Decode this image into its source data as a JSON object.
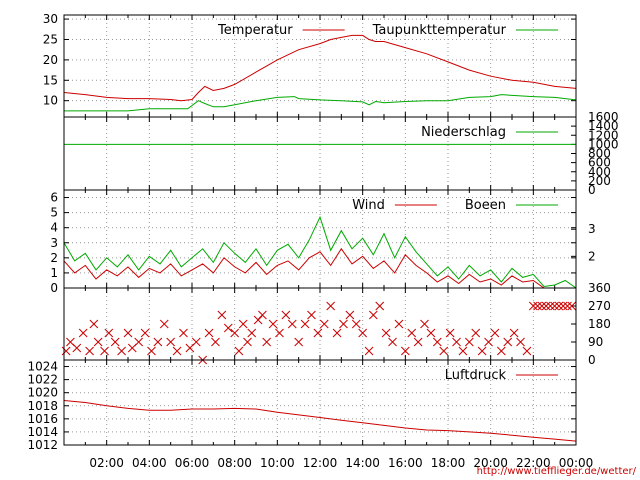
{
  "credit": "http://www.tiefflieger.de/wetter/",
  "colors": {
    "red": "#cc0000",
    "green": "#00aa00",
    "grid": "#999999",
    "frame": "#000000"
  },
  "x_tick_labels": [
    "02:00",
    "04:00",
    "06:00",
    "08:00",
    "10:00",
    "12:00",
    "14:00",
    "16:00",
    "18:00",
    "20:00",
    "22:00",
    "00:00"
  ],
  "chart_data": [
    {
      "type": "line",
      "x_unit": "hour",
      "xlim": [
        0,
        24
      ],
      "ylim": [
        6,
        31
      ],
      "y_ticks": [
        10,
        15,
        20,
        25,
        30
      ],
      "grid": true,
      "legend_position": "top-right",
      "series": [
        {
          "name": "Temperatur",
          "color": "#cc0000",
          "x": [
            0,
            1,
            2,
            3,
            4,
            5,
            5.5,
            6,
            6.3,
            6.6,
            7,
            7.5,
            8,
            9,
            10,
            11,
            12,
            12.5,
            13,
            13.5,
            14,
            14.3,
            14.6,
            15,
            16,
            17,
            18,
            19,
            20,
            21,
            22,
            23,
            24
          ],
          "y": [
            12,
            11.5,
            10.8,
            10.5,
            10.5,
            10.3,
            10,
            10.3,
            12,
            13.5,
            12.5,
            13,
            14,
            17,
            20,
            22.5,
            24,
            25,
            25.5,
            26,
            26,
            25,
            24.5,
            24.5,
            23,
            21.5,
            19.5,
            17.5,
            16,
            15,
            14.5,
            13.5,
            13
          ]
        },
        {
          "name": "Taupunkttemperatur",
          "color": "#00aa00",
          "x": [
            0,
            1,
            2,
            3,
            4,
            5,
            5.8,
            6.3,
            6.6,
            7,
            7.5,
            8,
            9,
            10,
            10.8,
            11,
            12,
            13,
            14,
            14.3,
            14.6,
            15,
            16,
            17,
            18,
            19,
            20,
            20.5,
            21,
            22,
            23,
            24
          ],
          "y": [
            7.5,
            7.5,
            7.5,
            7.5,
            8,
            8,
            8,
            10,
            9.3,
            8.5,
            8.5,
            9,
            10,
            10.8,
            11,
            10.5,
            10.2,
            10,
            9.7,
            9,
            9.8,
            9.5,
            9.8,
            10,
            10,
            10.8,
            11,
            11.5,
            11.3,
            11,
            10.8,
            10.2
          ]
        }
      ]
    },
    {
      "type": "line",
      "x_unit": "hour",
      "xlim": [
        0,
        24
      ],
      "ylim": [
        0,
        1600
      ],
      "right_y_ticks": [
        0,
        200,
        400,
        600,
        800,
        1000,
        1200,
        1400,
        1600
      ],
      "grid": false,
      "legend_position": "top-right",
      "series": [
        {
          "name": "Niederschlag",
          "color": "#00aa00",
          "x": [
            0,
            24
          ],
          "y": [
            1000,
            1000
          ]
        }
      ]
    },
    {
      "type": "line",
      "x_unit": "hour",
      "xlim": [
        0,
        24
      ],
      "ylim": [
        0,
        6.5
      ],
      "y_ticks": [
        0,
        1,
        2,
        3,
        4,
        5,
        6
      ],
      "right_ticks": [
        {
          "label": "2",
          "value": 2.1
        },
        {
          "label": "3",
          "value": 3.9
        }
      ],
      "grid": true,
      "legend_position": "top-right",
      "series": [
        {
          "name": "Wind",
          "color": "#cc0000",
          "x": [
            0,
            0.5,
            1,
            1.5,
            2,
            2.5,
            3,
            3.5,
            4,
            4.5,
            5,
            5.5,
            6,
            6.5,
            7,
            7.5,
            8,
            8.5,
            9,
            9.5,
            10,
            10.5,
            11,
            11.5,
            12,
            12.5,
            13,
            13.5,
            14,
            14.5,
            15,
            15.5,
            16,
            16.5,
            17,
            17.5,
            18,
            18.5,
            19,
            19.5,
            20,
            20.5,
            21,
            21.5,
            22,
            22.5,
            23,
            23.5,
            24
          ],
          "y": [
            1.8,
            1,
            1.5,
            0.6,
            1.2,
            0.8,
            1.4,
            0.7,
            1.3,
            1,
            1.6,
            0.8,
            1.2,
            1.6,
            1,
            2,
            1.4,
            1,
            1.7,
            0.9,
            1.5,
            1.8,
            1.2,
            2,
            2.4,
            1.5,
            2.6,
            1.6,
            2.1,
            1.3,
            1.8,
            1,
            2.2,
            1.5,
            1,
            0.4,
            0.8,
            0.3,
            0.9,
            0.4,
            0.6,
            0.2,
            0.8,
            0.4,
            0.5,
            0,
            0,
            0,
            0
          ]
        },
        {
          "name": "Boeen",
          "color": "#00aa00",
          "x": [
            0,
            0.5,
            1,
            1.5,
            2,
            2.5,
            3,
            3.5,
            4,
            4.5,
            5,
            5.5,
            6,
            6.5,
            7,
            7.5,
            8,
            8.5,
            9,
            9.5,
            10,
            10.5,
            11,
            11.5,
            12,
            12.5,
            13,
            13.5,
            14,
            14.5,
            15,
            15.5,
            16,
            16.5,
            17,
            17.5,
            18,
            18.5,
            19,
            19.5,
            20,
            20.5,
            21,
            21.5,
            22,
            22.5,
            23,
            23.5,
            24
          ],
          "y": [
            3,
            1.8,
            2.3,
            1.2,
            2,
            1.4,
            2.2,
            1.2,
            2.1,
            1.6,
            2.5,
            1.4,
            2,
            2.6,
            1.7,
            3,
            2.3,
            1.7,
            2.6,
            1.5,
            2.5,
            2.9,
            2,
            3.2,
            4.7,
            2.5,
            3.8,
            2.6,
            3.3,
            2.2,
            3.6,
            2,
            3.4,
            2.4,
            1.6,
            0.8,
            1.4,
            0.6,
            1.5,
            0.8,
            1.2,
            0.4,
            1.3,
            0.7,
            0.9,
            0.1,
            0.2,
            0.5,
            0
          ]
        }
      ]
    },
    {
      "type": "scatter",
      "x_unit": "hour",
      "xlim": [
        0,
        24
      ],
      "ylim": [
        0,
        360
      ],
      "right_y_ticks": [
        0,
        90,
        180,
        270,
        360
      ],
      "marker": "x",
      "color": "#cc0000",
      "series": [
        {
          "x": [
            0.1,
            0.3,
            0.6,
            0.9,
            1.2,
            1.4,
            1.6,
            1.9,
            2.1,
            2.4,
            2.7,
            3,
            3.2,
            3.5,
            3.8,
            4.1,
            4.4,
            4.7,
            5,
            5.3,
            5.6,
            5.9,
            6.2,
            6.5,
            6.8,
            7.1,
            7.4,
            7.7,
            8,
            8.2,
            8.4,
            8.6,
            8.8,
            9.1,
            9.3,
            9.5,
            9.8,
            10.1,
            10.4,
            10.7,
            11,
            11.3,
            11.6,
            11.9,
            12.2,
            12.5,
            12.8,
            13.1,
            13.4,
            13.7,
            14,
            14.3,
            14.5,
            14.8,
            15.1,
            15.4,
            15.7,
            16,
            16.3,
            16.6,
            16.9,
            17.2,
            17.5,
            17.8,
            18.1,
            18.4,
            18.7,
            19,
            19.3,
            19.6,
            19.9,
            20.2,
            20.5,
            20.8,
            21.1,
            21.4,
            21.7,
            22,
            22.2,
            22.4,
            22.6,
            22.8,
            23,
            23.2,
            23.4,
            23.6,
            23.8
          ],
          "y": [
            45,
            90,
            60,
            135,
            45,
            180,
            90,
            45,
            135,
            90,
            45,
            135,
            60,
            90,
            135,
            45,
            90,
            180,
            90,
            45,
            135,
            60,
            90,
            0,
            135,
            90,
            225,
            160,
            135,
            45,
            180,
            90,
            135,
            200,
            225,
            90,
            180,
            135,
            225,
            180,
            90,
            180,
            225,
            135,
            180,
            270,
            135,
            180,
            225,
            180,
            135,
            45,
            225,
            270,
            135,
            90,
            180,
            45,
            135,
            90,
            180,
            135,
            90,
            45,
            135,
            90,
            45,
            90,
            135,
            45,
            90,
            135,
            45,
            90,
            135,
            90,
            45,
            270,
            270,
            270,
            270,
            270,
            270,
            270,
            270,
            270,
            270
          ]
        }
      ]
    },
    {
      "type": "line",
      "x_unit": "hour",
      "xlim": [
        0,
        24
      ],
      "ylim": [
        1012,
        1025
      ],
      "y_ticks": [
        1012,
        1014,
        1016,
        1018,
        1020,
        1022,
        1024
      ],
      "grid": true,
      "legend_position": "top-right",
      "series": [
        {
          "name": "Luftdruck",
          "color": "#cc0000",
          "x": [
            0,
            1,
            2,
            3,
            4,
            5,
            6,
            7,
            8,
            9,
            10,
            11,
            12,
            13,
            14,
            15,
            16,
            17,
            18,
            19,
            20,
            21,
            22,
            23,
            24
          ],
          "y": [
            1018.8,
            1018.5,
            1018,
            1017.6,
            1017.3,
            1017.3,
            1017.5,
            1017.5,
            1017.6,
            1017.5,
            1017,
            1016.6,
            1016.2,
            1015.8,
            1015.4,
            1015,
            1014.6,
            1014.3,
            1014.2,
            1014,
            1013.8,
            1013.5,
            1013.2,
            1012.9,
            1012.6
          ]
        }
      ]
    }
  ]
}
